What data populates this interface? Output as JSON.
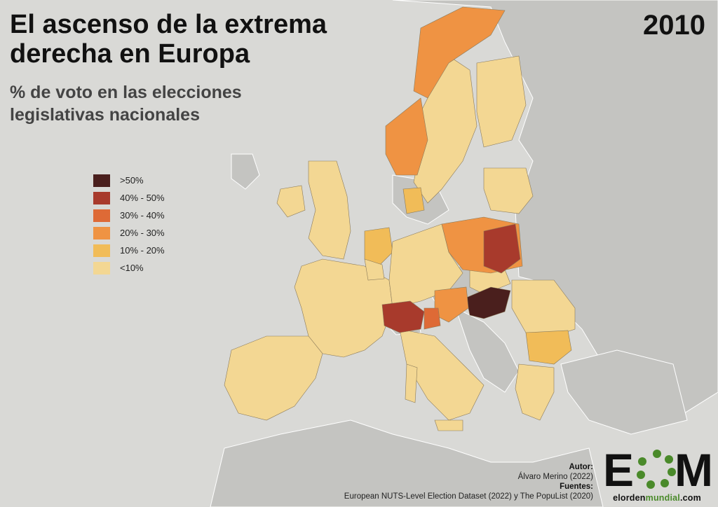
{
  "header": {
    "title": "El ascenso de la extrema derecha en Europa",
    "subtitle": "% de voto en las elecciones legislativas nacionales",
    "year": "2010"
  },
  "legend": {
    "items": [
      {
        "label": ">50%",
        "color": "#4a1f1d"
      },
      {
        "label": "40% - 50%",
        "color": "#a83a2c"
      },
      {
        "label": "30% - 40%",
        "color": "#de6a36"
      },
      {
        "label": "20% - 30%",
        "color": "#ef9343"
      },
      {
        "label": "10% - 20%",
        "color": "#f1bc58"
      },
      {
        "label": "<10%",
        "color": "#f3d793"
      }
    ]
  },
  "credits": {
    "author_label": "Autor:",
    "author": "Álvaro Merino (2022)",
    "sources_label": "Fuentes:",
    "sources": "European NUTS-Level Election Dataset (2022) y The PopuList (2020)"
  },
  "logo": {
    "mark": "EOM",
    "site_part1": "elorden",
    "site_part2": "mundial",
    "site_part3": ".com"
  },
  "colors": {
    "sea": "#d9d9d6",
    "land_no_data": "#c4c4c1",
    "border": "#ffffff",
    "region_border": "#8a7a5a",
    "logo_green": "#4a8a2a"
  }
}
